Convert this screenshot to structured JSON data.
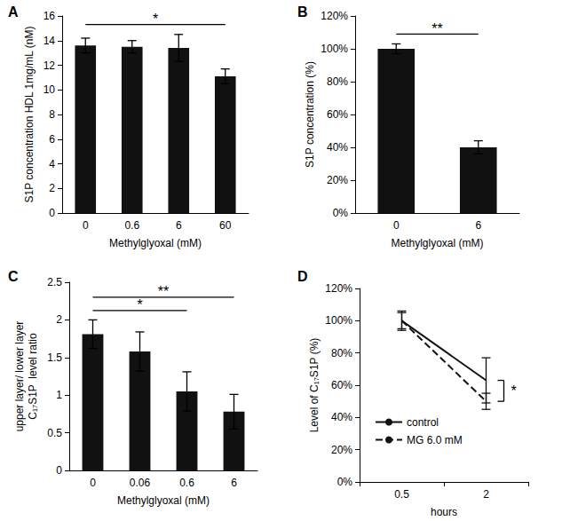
{
  "chart_data": [
    {
      "type": "bar",
      "title": "A",
      "x_label": "Methylglyoxal (mM)",
      "y_label": "S1P concentration HDL 1mg/mL (nM)",
      "categories": [
        "0",
        "0.6",
        "6",
        "60"
      ],
      "values": [
        13.6,
        13.5,
        13.4,
        11.1
      ],
      "errors": [
        0.6,
        0.5,
        1.1,
        0.6
      ],
      "color": "#111111",
      "ylim": [
        0,
        16
      ],
      "yticks": [
        0,
        2,
        4,
        6,
        8,
        10,
        12,
        14,
        16
      ],
      "grid": false,
      "annotations": [
        {
          "text": "*",
          "from": "0",
          "to": "60"
        }
      ]
    },
    {
      "type": "bar",
      "title": "B",
      "x_label": "Methylglyoxal (mM)",
      "y_label": "S1P concentration (%)",
      "categories": [
        "0",
        "6"
      ],
      "values": [
        100,
        40
      ],
      "errors": [
        3,
        4
      ],
      "color": "#111111",
      "ylim": [
        0,
        120
      ],
      "yticks": [
        {
          "value": 0,
          "label": "0%"
        },
        {
          "value": 20,
          "label": "20%"
        },
        {
          "value": 40,
          "label": "40%"
        },
        {
          "value": 60,
          "label": "60%"
        },
        {
          "value": 80,
          "label": "80%"
        },
        {
          "value": 100,
          "label": "100%"
        },
        {
          "value": 120,
          "label": "120%"
        }
      ],
      "grid": false,
      "annotations": [
        {
          "text": "**",
          "from": "0",
          "to": "6"
        }
      ]
    },
    {
      "type": "bar",
      "title": "C",
      "x_label": "Methylglyoxal (mM)",
      "y_label": "upper layer/ lower layer\nC₁₇S1P  level ratio",
      "categories": [
        "0",
        "0.06",
        "0.6",
        "6"
      ],
      "values": [
        1.81,
        1.58,
        1.05,
        0.78
      ],
      "errors": [
        0.19,
        0.26,
        0.26,
        0.23
      ],
      "color": "#111111",
      "ylim": [
        0,
        2.5
      ],
      "yticks": [
        0,
        0.5,
        1,
        1.5,
        2,
        2.5
      ],
      "grid": false,
      "annotations": [
        {
          "text": "*",
          "from": "0",
          "to": "0.6"
        },
        {
          "text": "**",
          "from": "0",
          "to": "6"
        }
      ]
    },
    {
      "type": "line",
      "title": "D",
      "x_label": "hours",
      "y_label": "Level of C₁₇S1P (%)",
      "categories": [
        "0.5",
        "2"
      ],
      "series": [
        {
          "name": "control",
          "color": "#111111",
          "line_style": "solid",
          "values": [
            100,
            63
          ],
          "errors": [
            5,
            14
          ]
        },
        {
          "name": "MG 6.0 mM",
          "color": "#111111",
          "line_style": "dashed",
          "values": [
            100,
            50
          ],
          "errors": [
            6,
            5
          ]
        }
      ],
      "ylim": [
        0,
        120
      ],
      "yticks": [
        {
          "value": 0,
          "label": "0%"
        },
        {
          "value": 20,
          "label": "20%"
        },
        {
          "value": 40,
          "label": "40%"
        },
        {
          "value": 60,
          "label": "60%"
        },
        {
          "value": 80,
          "label": "80%"
        },
        {
          "value": 100,
          "label": "100%"
        },
        {
          "value": 120,
          "label": "120%"
        }
      ],
      "grid": false,
      "legend": "left",
      "annotations": [
        {
          "text": "*",
          "at": "2",
          "between": [
            "control",
            "MG 6.0 mM"
          ]
        }
      ]
    }
  ]
}
